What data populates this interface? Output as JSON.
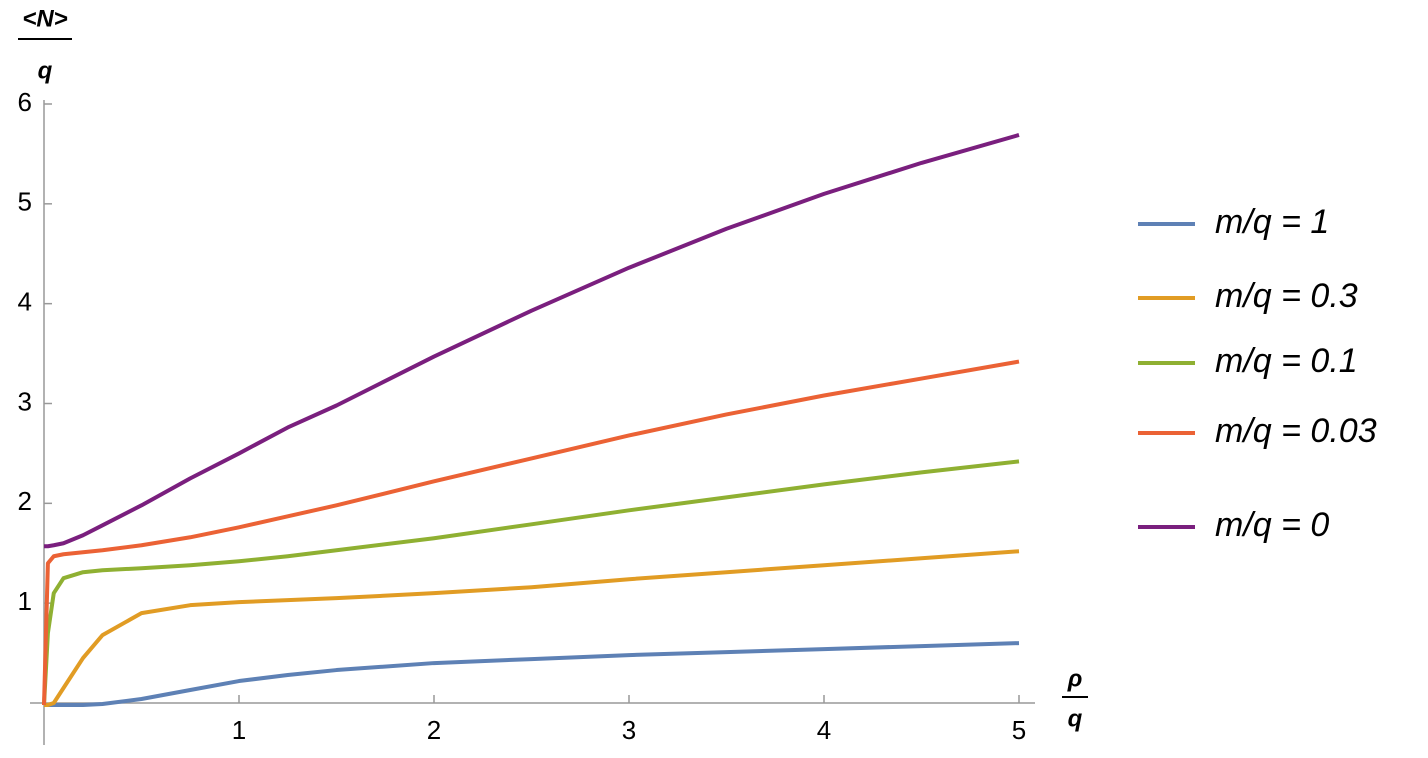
{
  "chart_data": {
    "type": "line",
    "ylabel": {
      "numerator": "<N>",
      "denominator": "q"
    },
    "xlabel": {
      "numerator": "ρ",
      "denominator": "q"
    },
    "x": [
      0,
      0.02,
      0.05,
      0.1,
      0.2,
      0.3,
      0.5,
      0.75,
      1,
      1.25,
      1.5,
      2,
      2.5,
      3,
      3.5,
      4,
      4.5,
      5
    ],
    "series": [
      {
        "name": "m/q = 1",
        "color": "#5e81b5",
        "values": [
          -0.02,
          -0.02,
          -0.02,
          -0.02,
          -0.02,
          -0.01,
          0.04,
          0.13,
          0.22,
          0.28,
          0.33,
          0.4,
          0.44,
          0.48,
          0.51,
          0.54,
          0.57,
          0.6
        ]
      },
      {
        "name": "m/q = 0.3",
        "color": "#e19c24",
        "values": [
          -0.02,
          -0.02,
          0.0,
          0.15,
          0.45,
          0.68,
          0.9,
          0.98,
          1.01,
          1.03,
          1.05,
          1.1,
          1.16,
          1.24,
          1.31,
          1.38,
          1.45,
          1.52
        ]
      },
      {
        "name": "m/q = 0.1",
        "color": "#8fb032",
        "values": [
          -0.02,
          0.7,
          1.1,
          1.25,
          1.31,
          1.33,
          1.35,
          1.38,
          1.42,
          1.47,
          1.53,
          1.65,
          1.79,
          1.93,
          2.06,
          2.19,
          2.31,
          2.42
        ]
      },
      {
        "name": "m/q = 0.03",
        "color": "#eb6235",
        "values": [
          -0.02,
          1.4,
          1.47,
          1.49,
          1.51,
          1.53,
          1.58,
          1.66,
          1.76,
          1.87,
          1.98,
          2.22,
          2.45,
          2.68,
          2.89,
          3.08,
          3.25,
          3.42
        ]
      },
      {
        "name": "m/q = 0",
        "color": "#7a1f7e",
        "values": [
          1.57,
          1.57,
          1.58,
          1.6,
          1.68,
          1.78,
          1.98,
          2.25,
          2.5,
          2.76,
          2.98,
          3.47,
          3.93,
          4.36,
          4.75,
          5.1,
          5.41,
          5.69
        ]
      }
    ],
    "xlim": [
      0,
      5
    ],
    "ylim": [
      0,
      6
    ],
    "xticks": [
      1,
      2,
      3,
      4,
      5
    ],
    "yticks": [
      1,
      2,
      3,
      4,
      5,
      6
    ]
  }
}
